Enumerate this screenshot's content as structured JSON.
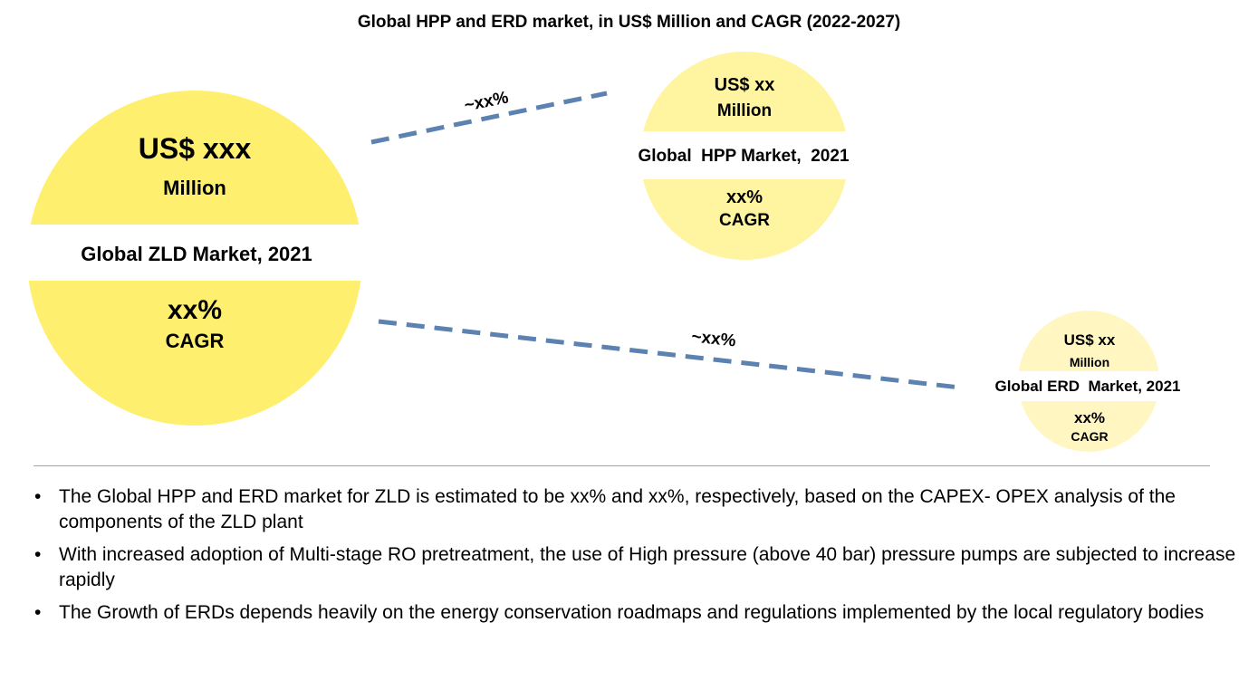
{
  "title": "Global HPP and ERD market, in US$ Million and CAGR (2022-2027)",
  "colors": {
    "zld": "#FFEF6E",
    "hpp": "#FFF4A0",
    "erd": "#FFF6C2",
    "connector": "#5B82B0"
  },
  "zld": {
    "value": "US$ xxx",
    "unit": "Million",
    "label": "Global ZLD Market, 2021",
    "cagr": "xx%",
    "cagr_label": "CAGR"
  },
  "hpp": {
    "value": "US$ xx",
    "unit": "Million",
    "label": "Global  HPP Market,  2021",
    "cagr": "xx%",
    "cagr_label": "CAGR",
    "share": "~xx%"
  },
  "erd": {
    "value": "US$ xx",
    "unit": "Million",
    "label": "Global ERD  Market, 2021",
    "cagr": "xx%",
    "cagr_label": "CAGR",
    "share": "~xx%"
  },
  "bullets": [
    "The Global HPP and ERD market for ZLD is estimated to be xx%  and xx%,  respectively, based on the CAPEX- OPEX analysis of the components of the ZLD plant",
    "With increased adoption of Multi-stage RO pretreatment, the use of High pressure (above 40 bar) pressure pumps are subjected to increase rapidly",
    "The Growth of ERDs depends heavily on the energy conservation roadmaps and regulations implemented by the local regulatory bodies"
  ]
}
